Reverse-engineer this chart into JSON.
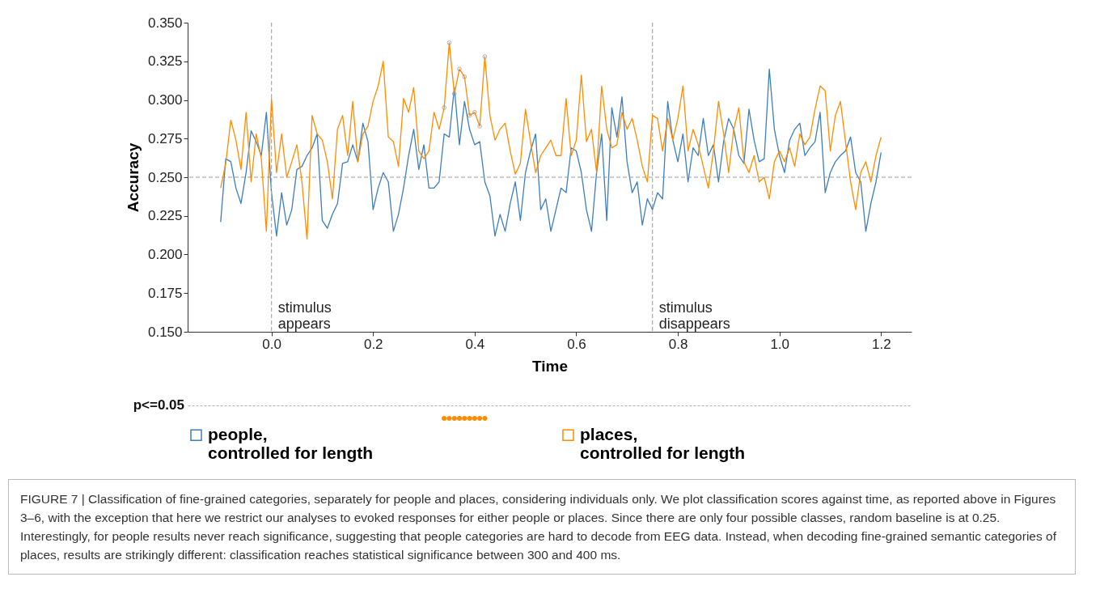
{
  "chart_data": {
    "type": "line",
    "xlabel": "Time",
    "ylabel": "Accuracy",
    "x": [
      -0.1,
      -0.09,
      -0.08,
      -0.07,
      -0.06,
      -0.05,
      -0.04,
      -0.03,
      -0.02,
      -0.01,
      0.0,
      0.01,
      0.02,
      0.03,
      0.04,
      0.05,
      0.06,
      0.07,
      0.08,
      0.09,
      0.1,
      0.11,
      0.12,
      0.13,
      0.14,
      0.15,
      0.16,
      0.17,
      0.18,
      0.19,
      0.2,
      0.21,
      0.22,
      0.23,
      0.24,
      0.25,
      0.26,
      0.27,
      0.28,
      0.29,
      0.3,
      0.31,
      0.32,
      0.33,
      0.34,
      0.35,
      0.36,
      0.37,
      0.38,
      0.39,
      0.4,
      0.41,
      0.42,
      0.43,
      0.44,
      0.45,
      0.46,
      0.47,
      0.48,
      0.49,
      0.5,
      0.51,
      0.52,
      0.53,
      0.54,
      0.55,
      0.56,
      0.57,
      0.58,
      0.59,
      0.6,
      0.61,
      0.62,
      0.63,
      0.64,
      0.65,
      0.66,
      0.67,
      0.68,
      0.69,
      0.7,
      0.71,
      0.72,
      0.73,
      0.74,
      0.75,
      0.76,
      0.77,
      0.78,
      0.79,
      0.8,
      0.81,
      0.82,
      0.83,
      0.84,
      0.85,
      0.86,
      0.87,
      0.88,
      0.89,
      0.9,
      0.91,
      0.92,
      0.93,
      0.94,
      0.95,
      0.96,
      0.97,
      0.98,
      0.99,
      1.0,
      1.01,
      1.02,
      1.03,
      1.04,
      1.05,
      1.06,
      1.07,
      1.08,
      1.09,
      1.1,
      1.11,
      1.12,
      1.13,
      1.14,
      1.15,
      1.16,
      1.17,
      1.18,
      1.19,
      1.2
    ],
    "series": [
      {
        "name": "people, controlled for length",
        "color": "#3d7ebb",
        "values": [
          0.221,
          0.262,
          0.26,
          0.243,
          0.233,
          0.253,
          0.28,
          0.273,
          0.264,
          0.292,
          0.24,
          0.212,
          0.24,
          0.219,
          0.229,
          0.255,
          0.257,
          0.264,
          0.269,
          0.278,
          0.222,
          0.217,
          0.226,
          0.233,
          0.259,
          0.26,
          0.271,
          0.26,
          0.285,
          0.273,
          0.229,
          0.243,
          0.253,
          0.247,
          0.215,
          0.226,
          0.243,
          0.264,
          0.281,
          0.255,
          0.271,
          0.243,
          0.243,
          0.247,
          0.278,
          0.276,
          0.308,
          0.271,
          0.299,
          0.281,
          0.271,
          0.273,
          0.247,
          0.238,
          0.212,
          0.226,
          0.215,
          0.233,
          0.247,
          0.222,
          0.253,
          0.267,
          0.278,
          0.229,
          0.236,
          0.215,
          0.229,
          0.243,
          0.24,
          0.269,
          0.267,
          0.253,
          0.229,
          0.215,
          0.253,
          0.278,
          0.222,
          0.295,
          0.276,
          0.302,
          0.26,
          0.24,
          0.247,
          0.219,
          0.236,
          0.229,
          0.24,
          0.236,
          0.299,
          0.274,
          0.26,
          0.278,
          0.247,
          0.269,
          0.264,
          0.288,
          0.264,
          0.271,
          0.247,
          0.273,
          0.288,
          0.281,
          0.264,
          0.259,
          0.294,
          0.274,
          0.26,
          0.262,
          0.32,
          0.281,
          0.264,
          0.253,
          0.274,
          0.281,
          0.285,
          0.264,
          0.269,
          0.273,
          0.292,
          0.24,
          0.253,
          0.26,
          0.264,
          0.267,
          0.276,
          0.253,
          0.247,
          0.215,
          0.233,
          0.247,
          0.266
        ]
      },
      {
        "name": "places, controlled for length",
        "color": "#ff8c00",
        "values": [
          0.243,
          0.259,
          0.287,
          0.274,
          0.255,
          0.292,
          0.247,
          0.278,
          0.262,
          0.215,
          0.301,
          0.253,
          0.278,
          0.25,
          0.26,
          0.271,
          0.247,
          0.21,
          0.29,
          0.278,
          0.274,
          0.26,
          0.236,
          0.281,
          0.29,
          0.264,
          0.299,
          0.26,
          0.278,
          0.283,
          0.299,
          0.309,
          0.325,
          0.276,
          0.273,
          0.257,
          0.301,
          0.292,
          0.308,
          0.267,
          0.262,
          0.267,
          0.292,
          0.281,
          0.295,
          0.337,
          0.304,
          0.32,
          0.315,
          0.29,
          0.292,
          0.283,
          0.328,
          0.29,
          0.274,
          0.281,
          0.285,
          0.267,
          0.252,
          0.259,
          0.294,
          0.273,
          0.253,
          0.264,
          0.269,
          0.274,
          0.264,
          0.264,
          0.301,
          0.264,
          0.274,
          0.316,
          0.273,
          0.281,
          0.253,
          0.309,
          0.281,
          0.269,
          0.271,
          0.292,
          0.281,
          0.288,
          0.274,
          0.257,
          0.247,
          0.29,
          0.288,
          0.267,
          0.288,
          0.274,
          0.288,
          0.309,
          0.267,
          0.281,
          0.271,
          0.257,
          0.243,
          0.267,
          0.299,
          0.278,
          0.253,
          0.281,
          0.295,
          0.26,
          0.253,
          0.264,
          0.247,
          0.25,
          0.236,
          0.26,
          0.267,
          0.26,
          0.269,
          0.257,
          0.278,
          0.271,
          0.276,
          0.294,
          0.309,
          0.306,
          0.267,
          0.29,
          0.299,
          0.273,
          0.247,
          0.229,
          0.253,
          0.26,
          0.247,
          0.264,
          0.276
        ]
      },
      {
        "type": "scatter",
        "marker": "circle",
        "color": "#8a8a8a",
        "x": [
          0.34,
          0.35,
          0.36,
          0.37,
          0.38,
          0.39,
          0.4,
          0.41,
          0.42
        ],
        "values": [
          0.295,
          0.337,
          0.304,
          0.32,
          0.315,
          0.29,
          0.292,
          0.283,
          0.328
        ]
      }
    ],
    "xlim": [
      -0.165,
      1.26
    ],
    "xticks": [
      {
        "value": 0,
        "label": "0.0"
      },
      {
        "value": 0.2,
        "label": "0.2"
      },
      {
        "value": 0.4,
        "label": "0.4"
      },
      {
        "value": 0.6,
        "label": "0.6"
      },
      {
        "value": 0.8,
        "label": "0.8"
      },
      {
        "value": 1,
        "label": "1.0"
      },
      {
        "value": 1.2,
        "label": "1.2"
      }
    ],
    "ylim": [
      0.15,
      0.35
    ],
    "yticks": [
      {
        "value": 0.15,
        "label": "0.150"
      },
      {
        "value": 0.175,
        "label": "0.175"
      },
      {
        "value": 0.2,
        "label": "0.200"
      },
      {
        "value": 0.225,
        "label": "0.225"
      },
      {
        "value": 0.25,
        "label": "0.250"
      },
      {
        "value": 0.275,
        "label": "0.275"
      },
      {
        "value": 0.3,
        "label": "0.300"
      },
      {
        "value": 0.325,
        "label": "0.325"
      },
      {
        "value": 0.35,
        "label": "0.350"
      }
    ],
    "ref_lines": [
      {
        "axis": "y",
        "value": 0.25,
        "color": "#999999",
        "line_style": "dashed"
      },
      {
        "axis": "x",
        "value": 0,
        "label": "stimulus\nappears",
        "color": "#aaaaaa",
        "line_style": "dashed"
      },
      {
        "axis": "x",
        "value": 0.75,
        "label": "stimulus\ndisappears",
        "color": "#aaaaaa",
        "line_style": "dashed"
      }
    ],
    "annotations": [
      "p<=0.05",
      "FIGURE 7 | Classification of fine-grained categories, separately for people and places, considering individuals only. We plot classification scores against time, as reported above in Figures 3–6, with the exception that here we restrict our analyses to evoked responses for either people or places. Since there are only four possible classes, random baseline is at 0.25. Interestingly, for people results never reach significance, suggesting that people categories are hard to decode from EEG data. Instead, when decoding fine-grained semantic categories of places, results are strikingly different: classification reaches statistical significance between 300 and 400 ms."
    ],
    "grid": false,
    "legend": "bottom",
    "line_style": "solid"
  }
}
